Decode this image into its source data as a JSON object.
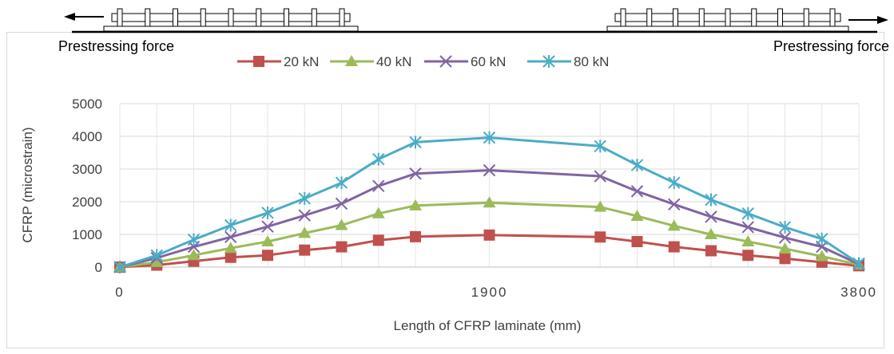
{
  "annotations": {
    "left_label": "Prestressing force",
    "right_label": "Prestressing force"
  },
  "chart_data": {
    "type": "line",
    "title": "",
    "xlabel": "Length of CFRP laminate (mm)",
    "ylabel": "CFRP (microstrain)",
    "xlim": [
      0,
      3800
    ],
    "ylim": [
      0,
      5000
    ],
    "x_ticks": [
      "0",
      "1900",
      "3800"
    ],
    "y_ticks": [
      "0",
      "1000",
      "2000",
      "3000",
      "4000",
      "5000"
    ],
    "grid": "vertical and horizontal gridlines",
    "legend_position": "top",
    "x": [
      0,
      190,
      380,
      570,
      760,
      950,
      1140,
      1330,
      1520,
      1900,
      2470,
      2660,
      2850,
      3040,
      3230,
      3420,
      3610,
      3800
    ],
    "series": [
      {
        "name": "20 kN",
        "color": "#c0504d",
        "marker": "square",
        "values": [
          0,
          60,
          180,
          300,
          360,
          520,
          620,
          820,
          930,
          980,
          920,
          780,
          620,
          500,
          360,
          260,
          150,
          40
        ]
      },
      {
        "name": "40 kN",
        "color": "#9bbb59",
        "marker": "triangle",
        "values": [
          0,
          150,
          360,
          580,
          780,
          1040,
          1280,
          1640,
          1880,
          1970,
          1840,
          1560,
          1260,
          1000,
          780,
          560,
          330,
          70
        ]
      },
      {
        "name": "60 kN",
        "color": "#8064a2",
        "marker": "x",
        "values": [
          0,
          280,
          620,
          920,
          1240,
          1580,
          1940,
          2480,
          2860,
          2960,
          2780,
          2320,
          1920,
          1540,
          1220,
          900,
          620,
          90
        ]
      },
      {
        "name": "80 kN",
        "color": "#4bacc6",
        "marker": "star",
        "values": [
          0,
          360,
          840,
          1280,
          1660,
          2100,
          2580,
          3300,
          3820,
          3960,
          3700,
          3120,
          2580,
          2060,
          1640,
          1220,
          860,
          110
        ]
      }
    ]
  }
}
